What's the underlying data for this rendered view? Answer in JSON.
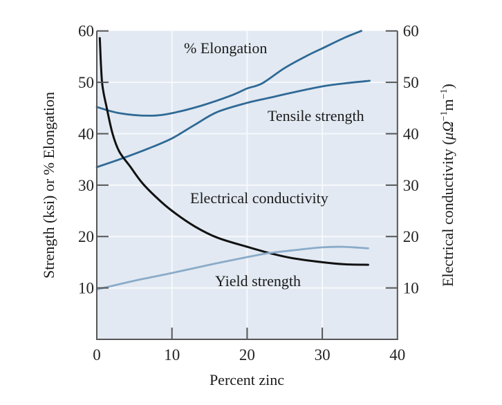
{
  "chart_data": {
    "type": "line",
    "title": "",
    "xlabel": "Percent zinc",
    "ylabel": "Strength (ksi) or % Elongation",
    "y2label_parts": [
      "Electrical conductivity (",
      "μΩ",
      "−1",
      "m",
      "−1",
      ")"
    ],
    "xlim": [
      0,
      40
    ],
    "ylim": [
      0,
      60
    ],
    "y2lim": [
      0,
      60
    ],
    "x_ticks": [
      0,
      10,
      20,
      30,
      40
    ],
    "y_ticks": [
      10,
      20,
      30,
      40,
      50,
      60
    ],
    "y2_ticks": [
      10,
      20,
      30,
      40,
      50,
      60
    ],
    "x_tick_labels": [
      "0",
      "10",
      "20",
      "30",
      "40"
    ],
    "y_tick_labels": [
      "10",
      "20",
      "30",
      "40",
      "50",
      "60"
    ],
    "y2_tick_labels": [
      "10",
      "20",
      "30",
      "40",
      "50",
      "60"
    ],
    "grid": true,
    "series": [
      {
        "name": "% Elongation",
        "axis": "left",
        "color": "#2e6995",
        "x": [
          0,
          3,
          7,
          10,
          14,
          18,
          20,
          22,
          25,
          28,
          30,
          33,
          35.2
        ],
        "y": [
          45.2,
          44.0,
          43.5,
          44.0,
          45.5,
          47.5,
          48.8,
          49.8,
          52.8,
          55.2,
          56.6,
          58.7,
          60.0
        ]
      },
      {
        "name": "Tensile strength",
        "axis": "left",
        "color": "#2e6995",
        "x": [
          0,
          3,
          7,
          10,
          13,
          16,
          20,
          23,
          26,
          30,
          33,
          36.3
        ],
        "y": [
          33.5,
          35.0,
          37.2,
          39.1,
          41.7,
          44.2,
          46.0,
          47.0,
          48.0,
          49.2,
          49.8,
          50.3
        ]
      },
      {
        "name": "Electrical conductivity",
        "axis": "right",
        "color": "#111111",
        "x": [
          0.4,
          0.7,
          1.3,
          2.1,
          3.0,
          4.4,
          6.0,
          8.0,
          10.0,
          13.0,
          16.0,
          20.0,
          23.2,
          26.0,
          30.0,
          33.0,
          36.1
        ],
        "y": [
          58.6,
          50.0,
          45.2,
          40.0,
          36.5,
          33.7,
          30.5,
          27.5,
          25.0,
          22.0,
          19.8,
          18.0,
          16.7,
          15.8,
          15.0,
          14.6,
          14.5
        ]
      },
      {
        "name": "Yield strength",
        "axis": "left",
        "color": "#8aabc9",
        "x": [
          0,
          5,
          10,
          15,
          20,
          23,
          26,
          30,
          32.8,
          36.1
        ],
        "y": [
          9.7,
          11.4,
          12.9,
          14.5,
          16.0,
          16.8,
          17.3,
          17.9,
          18.0,
          17.7
        ]
      }
    ],
    "annotations": [
      {
        "text": "% Elongation",
        "series": "% Elongation"
      },
      {
        "text": "Tensile strength",
        "series": "Tensile strength"
      },
      {
        "text": "Electrical conductivity",
        "series": "Electrical conductivity"
      },
      {
        "text": "Yield strength",
        "series": "Yield strength"
      }
    ],
    "colors": {
      "plot_background": "#e2e9f2",
      "grid": "#f7f9fc",
      "axis": "#555555"
    }
  }
}
